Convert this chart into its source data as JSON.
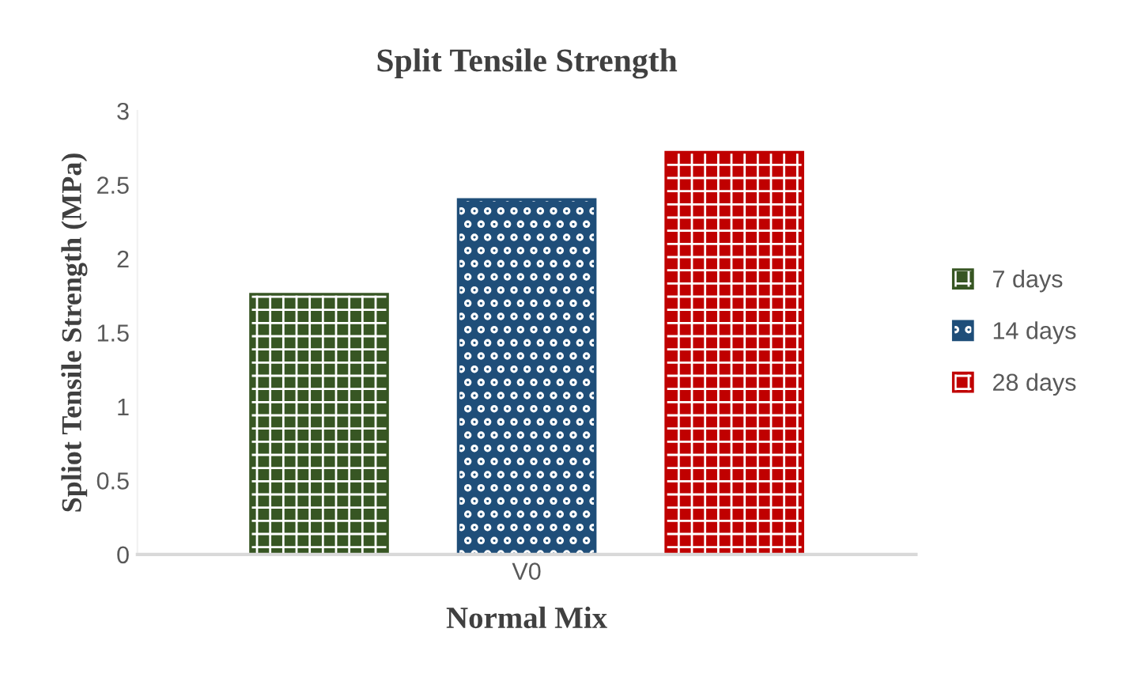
{
  "chart_data": {
    "type": "bar",
    "title": "Split Tensile Strength",
    "xlabel": "Normal Mix",
    "ylabel": "Spliot Tensile Strength (MPa)",
    "categories": [
      "V0"
    ],
    "series": [
      {
        "name": "7 days",
        "color": "#375623",
        "values": [
          1.76
        ]
      },
      {
        "name": "14 days",
        "color": "#1f4e79",
        "values": [
          2.4
        ]
      },
      {
        "name": "28 days",
        "color": "#c00000",
        "values": [
          2.72
        ]
      }
    ],
    "ylim": [
      0,
      3
    ],
    "yticks": [
      0,
      0.5,
      1,
      1.5,
      2,
      2.5,
      3
    ],
    "grid": false,
    "legend": "right"
  }
}
